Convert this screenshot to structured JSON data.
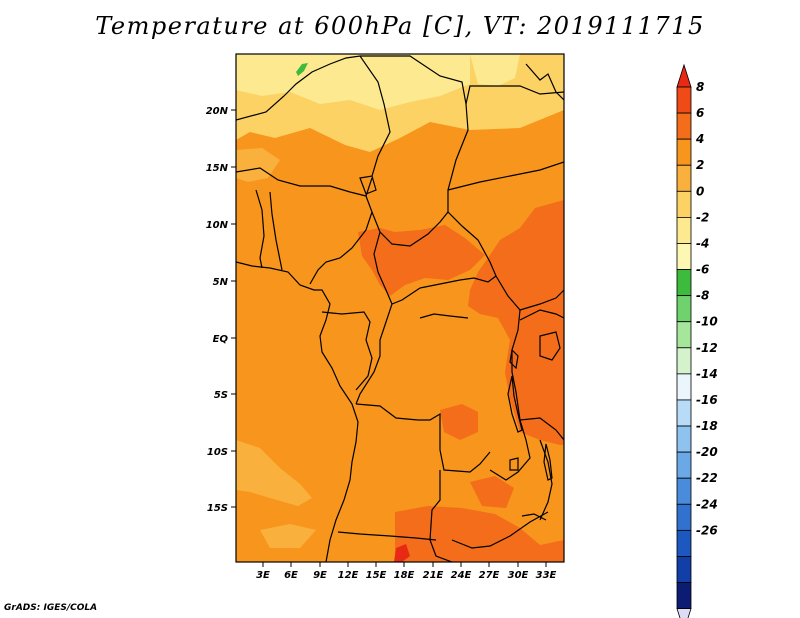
{
  "title": "Temperature at 600hPa [C], VT: 2019111715",
  "credit": "GrADS: IGES/COLA",
  "map": {
    "lat_ticks": [
      "20N",
      "15N",
      "10N",
      "5N",
      "EQ",
      "5S",
      "10S",
      "15S"
    ],
    "lon_ticks": [
      "3E",
      "6E",
      "9E",
      "12E",
      "15E",
      "18E",
      "21E",
      "24E",
      "27E",
      "30E",
      "33E"
    ]
  },
  "colorbar": {
    "labels": [
      "8",
      "6",
      "4",
      "2",
      "0",
      "-2",
      "-4",
      "-6",
      "-8",
      "-10",
      "-12",
      "-14",
      "-16",
      "-18",
      "-20",
      "-22",
      "-24",
      "-26"
    ],
    "colors": [
      "#e82a14",
      "#f04a16",
      "#f46d1a",
      "#f7951c",
      "#fab03c",
      "#fcd264",
      "#fde98f",
      "#fcf8b4",
      "#3cbb3c",
      "#6fd26c",
      "#a5e69a",
      "#d4f2cc",
      "#eaf6fc",
      "#b8dcf7",
      "#8ec2ef",
      "#6aa8e6",
      "#4a8cdc",
      "#3172d0",
      "#1c58bf",
      "#123ea8",
      "#0c1c72",
      "#dcdcf6"
    ]
  }
}
